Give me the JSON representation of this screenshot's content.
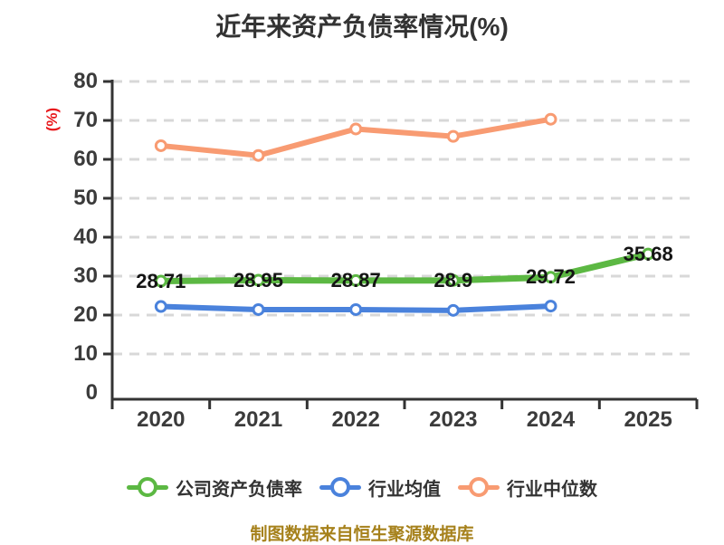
{
  "colors": {
    "background": "#FFFFFF",
    "title": "#333333",
    "axis": "#333333",
    "grid": "#D8D8D8",
    "tick_label": "#3B3B3B",
    "data_label": "#141414",
    "percent_label": "#E8191D",
    "source_note": "#A6811B",
    "marker_fill": "#FFFFFF"
  },
  "chart_data": {
    "type": "line",
    "title": "近年来资产负债率情况(%)",
    "ylabel": "(%)",
    "xlabel": "",
    "categories": [
      "2020",
      "2021",
      "2022",
      "2023",
      "2024",
      "2025"
    ],
    "ylim": [
      0,
      80
    ],
    "yticks": [
      0,
      10,
      20,
      30,
      40,
      50,
      60,
      70,
      80
    ],
    "grid": "horizontal-dashed",
    "legend_position": "bottom",
    "series": [
      {
        "name": "公司资产负债率",
        "color": "#5CB843",
        "values": [
          28.71,
          28.95,
          28.87,
          28.9,
          29.72,
          35.68
        ],
        "labels": [
          "28.71",
          "28.95",
          "28.87",
          "28.9",
          "29.72",
          "35.68"
        ]
      },
      {
        "name": "行业均值",
        "color": "#4A82DC",
        "values": [
          22.2,
          21.4,
          21.4,
          21.2,
          22.3
        ]
      },
      {
        "name": "行业中位数",
        "color": "#F89B72",
        "values": [
          63.5,
          61.0,
          67.8,
          65.9,
          70.3
        ]
      }
    ],
    "source_note": "制图数据来自恒生聚源数据库"
  }
}
